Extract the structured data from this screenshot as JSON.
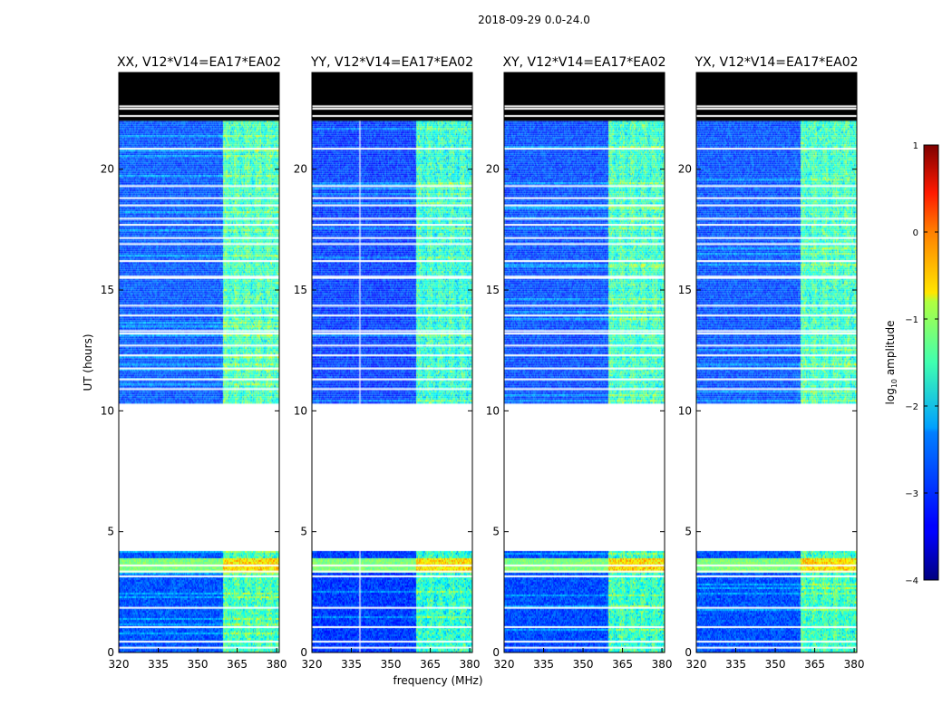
{
  "figure": {
    "suptitle": "2018-09-29 0.0-24.0",
    "xlabel": "frequency (MHz)",
    "ylabel": "UT (hours)"
  },
  "chart_data": {
    "type": "heatmap",
    "x_unit": "MHz",
    "y_unit": "hours",
    "xlim": [
      320,
      381
    ],
    "ylim": [
      0,
      24
    ],
    "xticks": [
      320,
      335,
      350,
      365,
      380
    ],
    "yticks": [
      0,
      5,
      10,
      15,
      20
    ],
    "panels": [
      {
        "title": "XX, V12*V14=EA17*EA02",
        "show_ylabels": true,
        "band_offset": 0.0,
        "band_start": 359.5
      },
      {
        "title": "YY, V12*V14=EA17*EA02",
        "show_ylabels": false,
        "band_offset": -0.25,
        "band_start": 359.5,
        "vertical_line_mhz": 338
      },
      {
        "title": "XY, V12*V14=EA17*EA02",
        "show_ylabels": false,
        "band_offset": -0.1,
        "band_start": 359.5
      },
      {
        "title": "YX, V12*V14=EA17*EA02",
        "show_ylabels": false,
        "band_offset": -0.05,
        "band_start": 359.5
      }
    ],
    "data_segments_hours": [
      [
        0.0,
        4.2
      ],
      [
        10.3,
        22.0
      ]
    ],
    "no_data_hours": [
      [
        4.2,
        10.3
      ]
    ],
    "black_block_hours": [
      22.0,
      24.0
    ],
    "flagged_white_rows_hours": [
      0.2,
      0.45,
      1.05,
      1.85,
      3.15,
      3.35,
      3.6,
      8.0,
      10.9,
      11.3,
      11.75,
      12.3,
      12.7,
      13.2,
      13.3,
      13.95,
      14.35,
      15.5,
      15.55,
      16.2,
      16.9,
      17.15,
      17.7,
      17.95,
      18.5,
      18.8,
      19.3,
      20.85,
      22.2,
      22.5,
      22.6
    ],
    "colorbar": {
      "label": "log10 amplitude",
      "label_main": "log",
      "label_sub": "10",
      "label_rest": " amplitude",
      "range": [
        -4,
        1
      ],
      "ticks": [
        "1",
        "0",
        "−1",
        "−2",
        "−3",
        "−4"
      ],
      "tick_values": [
        1,
        0,
        -1,
        -2,
        -3,
        -4
      ],
      "colormap": "jet"
    }
  }
}
